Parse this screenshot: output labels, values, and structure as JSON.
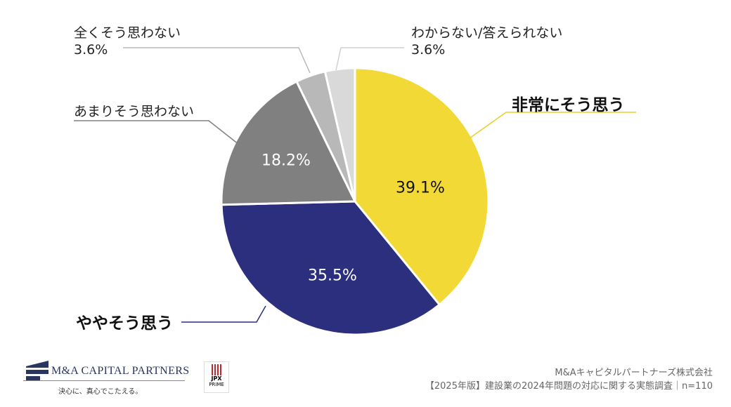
{
  "chart_data": {
    "type": "pie",
    "slices": [
      {
        "label": "非常にそう思う",
        "value": 39.1,
        "display": "39.1%",
        "color": "#f2d935"
      },
      {
        "label": "ややそう思う",
        "value": 35.5,
        "display": "35.5%",
        "color": "#2b2f7e"
      },
      {
        "label": "あまりそう思わない",
        "value": 18.2,
        "display": "18.2%",
        "color": "#808080"
      },
      {
        "label": "全くそう思わない",
        "value": 3.6,
        "display": "3.6%",
        "color": "#b8b8b8"
      },
      {
        "label": "わからない/答えられない",
        "value": 3.6,
        "display": "3.6%",
        "color": "#d9d9d9"
      }
    ]
  },
  "footer": {
    "company": "M&Aキャピタルパートナーズ株式会社",
    "survey": "【2025年版】建設業の2024年問題の対応に関する実態調査｜n=110"
  },
  "logo": {
    "name": "M&A CAPITAL PARTNERS",
    "tagline": "決心に、真心でこたえる。",
    "jpx": "JPX",
    "jpx_sub": "PRIME"
  }
}
